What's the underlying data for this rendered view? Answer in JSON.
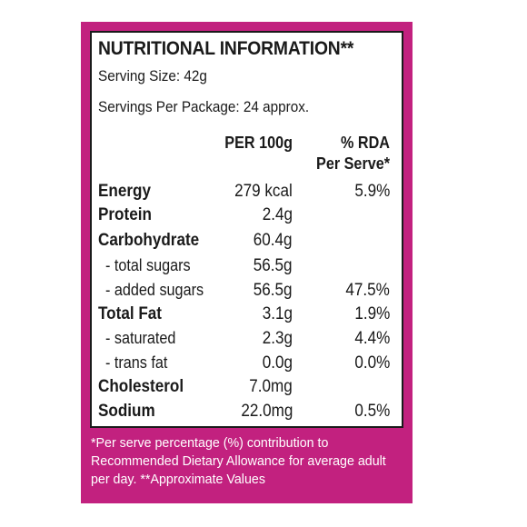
{
  "colors": {
    "panel": "#c2217f",
    "text": "#1a1a1a",
    "footnote_text": "#ffffff"
  },
  "label": {
    "title": "NUTRITIONAL INFORMATION**",
    "serving_size": "Serving Size: 42g",
    "servings_per_package": "Servings Per Package: 24 approx.",
    "col_per100": "PER 100g",
    "col_rda_line1": "% RDA",
    "col_rda_line2": "Per Serve*",
    "rows": [
      {
        "name": "Energy",
        "value": "279 kcal",
        "rda": "5.9%"
      },
      {
        "name": "Protein",
        "value": "2.4g",
        "rda": ""
      },
      {
        "name": "Carbohydrate",
        "value": "60.4g",
        "rda": ""
      },
      {
        "name": "- total sugars",
        "value": "56.5g",
        "rda": ""
      },
      {
        "name": "- added sugars",
        "value": "56.5g",
        "rda": "47.5%"
      },
      {
        "name": "Total Fat",
        "value": "3.1g",
        "rda": "1.9%"
      },
      {
        "name": "- saturated",
        "value": "2.3g",
        "rda": "4.4%"
      },
      {
        "name": "- trans fat",
        "value": "0.0g",
        "rda": "0.0%"
      },
      {
        "name": "Cholesterol",
        "value": "7.0mg",
        "rda": ""
      },
      {
        "name": "Sodium",
        "value": "22.0mg",
        "rda": "0.5%"
      }
    ],
    "footnote_line1": "*Per serve percentage (%) contribution to",
    "footnote_line2": "Recommended Dietary Allowance for average adult",
    "footnote_line3": "per day.  **Approximate Values"
  }
}
